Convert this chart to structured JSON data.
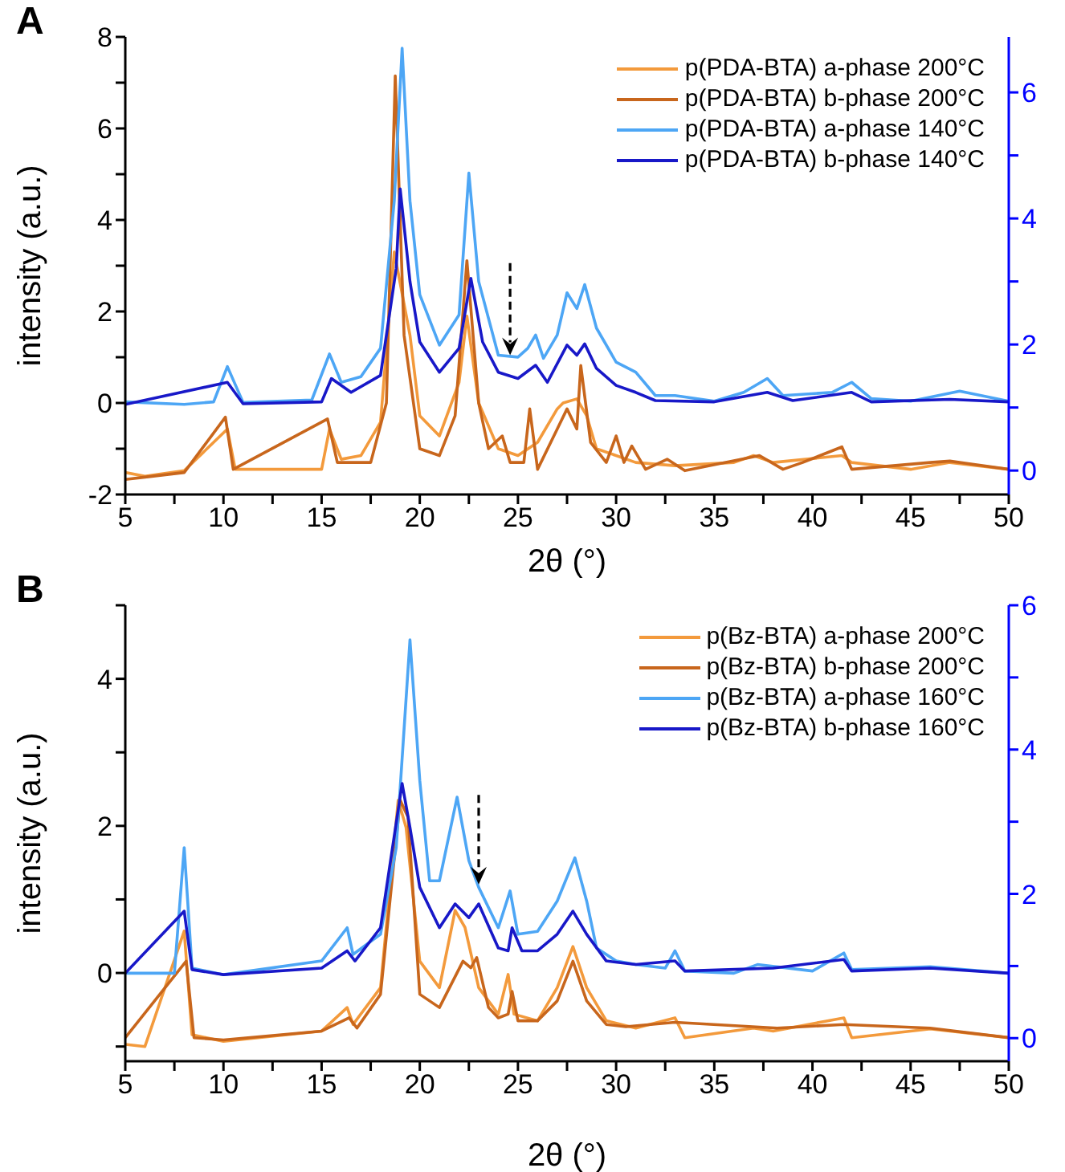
{
  "chart_data": [
    {
      "type": "line",
      "title": "A",
      "xlabel": "2θ (°)",
      "ylabel": "intensity (a.u.)",
      "xlim": [
        5,
        50
      ],
      "ylim": [
        -2,
        8
      ],
      "y2lim": [
        -0.38,
        6.88
      ],
      "xticks": [
        5,
        {
          "value": 7.5,
          "label": null
        },
        10,
        {
          "value": 12.5,
          "label": null
        },
        15,
        {
          "value": 17.5,
          "label": null
        },
        20,
        {
          "value": 22.5,
          "label": null
        },
        25,
        {
          "value": 27.5,
          "label": null
        },
        30,
        {
          "value": 32.5,
          "label": null
        },
        35,
        {
          "value": 37.5,
          "label": null
        },
        40,
        {
          "value": 42.5,
          "label": null
        },
        45,
        {
          "value": 47.5,
          "label": null
        },
        50
      ],
      "yticks": [
        -2,
        {
          "value": -1,
          "label": null
        },
        0,
        {
          "value": 1,
          "label": null
        },
        2,
        {
          "value": 3,
          "label": null
        },
        4,
        {
          "value": 5,
          "label": null
        },
        6,
        {
          "value": 7,
          "label": null
        },
        8
      ],
      "y2ticks": [
        0,
        {
          "value": 1,
          "label": null
        },
        2,
        {
          "value": 3,
          "label": null
        },
        4,
        {
          "value": 5,
          "label": null
        },
        6
      ],
      "legend": "top right",
      "grid": false,
      "marker": "none",
      "line_style": "solid",
      "series": [
        {
          "name": "p(PDA-BTA) a-phase 200°C",
          "color": "#f39a3c",
          "x": [
            5,
            6,
            8,
            10.2,
            10.6,
            15,
            15.4,
            16,
            17,
            18,
            18.7,
            19.5,
            20,
            21,
            22,
            22.4,
            23,
            24,
            25,
            26,
            27,
            27.3,
            28,
            28.5,
            29,
            30,
            31,
            33,
            36,
            37,
            38,
            41.5,
            42,
            45,
            47,
            50
          ],
          "values": [
            -1.52,
            -1.6,
            -1.48,
            -0.57,
            -1.45,
            -1.45,
            -0.57,
            -1.23,
            -1.15,
            -0.42,
            3.3,
            1.48,
            -0.28,
            -0.72,
            0.45,
            1.9,
            0,
            -1,
            -1.15,
            -0.86,
            -0.13,
            0,
            0.09,
            -0.28,
            -1,
            -1.15,
            -1.3,
            -1.37,
            -1.3,
            -1.15,
            -1.3,
            -1.15,
            -1.3,
            -1.45,
            -1.3,
            -1.45
          ]
        },
        {
          "name": "p(PDA-BTA) b-phase 200°C",
          "color": "#c8661c",
          "x": [
            5,
            6,
            8,
            10.1,
            10.5,
            15.3,
            15.8,
            17.5,
            18.3,
            18.75,
            19.2,
            20,
            21,
            21.8,
            22.4,
            23,
            23.5,
            24.2,
            24.6,
            25.3,
            25.6,
            26,
            27,
            27.5,
            28,
            28.2,
            28.7,
            29.5,
            30,
            30.4,
            30.8,
            31.5,
            32.6,
            33.5,
            36.4,
            37.3,
            38.5,
            39.5,
            41.5,
            42,
            46,
            47,
            48,
            50
          ],
          "values": [
            -1.67,
            -1.62,
            -1.52,
            -0.31,
            -1.45,
            -0.35,
            -1.3,
            -1.3,
            0,
            7.15,
            1.48,
            -1,
            -1.15,
            -0.28,
            3.11,
            0,
            -1,
            -0.72,
            -1.3,
            -1.3,
            -0.13,
            -1.45,
            -0.57,
            -0.13,
            -0.57,
            0.82,
            -0.86,
            -1.3,
            -0.72,
            -1.3,
            -0.94,
            -1.45,
            -1.23,
            -1.48,
            -1.23,
            -1.15,
            -1.45,
            -1.3,
            -0.96,
            -1.45,
            -1.3,
            -1.27,
            -1.33,
            -1.45
          ]
        },
        {
          "name": "p(PDA-BTA) a-phase 140°C",
          "color": "#4da6f5",
          "axis": "y2",
          "x": [
            5,
            8,
            9.5,
            10.2,
            11,
            14.5,
            15.4,
            16,
            17,
            18,
            18.7,
            19.1,
            19.5,
            20,
            21,
            22,
            22.5,
            23,
            24,
            25,
            25.5,
            25.9,
            26.3,
            27,
            27.5,
            28,
            28.4,
            29,
            30,
            31,
            32,
            33,
            35,
            36.5,
            37.7,
            38.5,
            41,
            42,
            43,
            45,
            47.5,
            50
          ],
          "values": [
            1.09,
            1.05,
            1.09,
            1.65,
            1.08,
            1.12,
            1.85,
            1.4,
            1.49,
            1.94,
            4.28,
            6.7,
            4.28,
            2.79,
            1.99,
            2.47,
            4.72,
            3,
            1.83,
            1.8,
            1.94,
            2.15,
            1.78,
            2.15,
            2.82,
            2.57,
            2.95,
            2.26,
            1.72,
            1.56,
            1.19,
            1.19,
            1.1,
            1.24,
            1.46,
            1.19,
            1.24,
            1.4,
            1.14,
            1.1,
            1.26,
            1.1
          ]
        },
        {
          "name": "p(PDA-BTA) b-phase 140°C",
          "color": "#1818c8",
          "axis": "y2",
          "x": [
            5,
            10.2,
            11,
            15,
            15.5,
            16.5,
            18,
            18.8,
            19,
            19.5,
            20,
            21,
            22,
            22.6,
            23.2,
            24,
            25,
            25.9,
            26.5,
            27.5,
            28,
            28.4,
            29,
            30,
            31,
            32,
            35,
            37.7,
            39,
            42,
            43,
            47,
            50
          ],
          "values": [
            1.05,
            1.4,
            1.06,
            1.09,
            1.46,
            1.24,
            1.51,
            3.21,
            4.47,
            3,
            2.04,
            1.56,
            1.94,
            3.05,
            2.04,
            1.56,
            1.46,
            1.67,
            1.4,
            1.99,
            1.83,
            2.01,
            1.62,
            1.35,
            1.24,
            1.11,
            1.09,
            1.24,
            1.11,
            1.24,
            1.09,
            1.13,
            1.09
          ]
        }
      ]
    },
    {
      "type": "line",
      "title": "B",
      "xlabel": "2θ (°)",
      "ylabel": "intensity (a.u.)",
      "xlim": [
        5,
        50
      ],
      "ylim": [
        -1.2,
        5
      ],
      "y2lim": [
        -0.32,
        6
      ],
      "xticks": [
        5,
        {
          "value": 7.5,
          "label": null
        },
        10,
        {
          "value": 12.5,
          "label": null
        },
        15,
        {
          "value": 17.5,
          "label": null
        },
        20,
        {
          "value": 22.5,
          "label": null
        },
        25,
        {
          "value": 27.5,
          "label": null
        },
        30,
        {
          "value": 32.5,
          "label": null
        },
        35,
        {
          "value": 37.5,
          "label": null
        },
        40,
        {
          "value": 42.5,
          "label": null
        },
        45,
        {
          "value": 47.5,
          "label": null
        },
        50
      ],
      "yticks": [
        {
          "value": -1,
          "label": null
        },
        0,
        {
          "value": 1,
          "label": null
        },
        2,
        {
          "value": 3,
          "label": null
        },
        4,
        {
          "value": 5,
          "label": null
        }
      ],
      "y2ticks": [
        0,
        {
          "value": 1,
          "label": null
        },
        2,
        {
          "value": 3,
          "label": null
        },
        4,
        {
          "value": 5,
          "label": null
        },
        6
      ],
      "legend": "top right",
      "grid": false,
      "marker": "none",
      "line_style": "solid",
      "series": [
        {
          "name": "p(Bz-BTA) a-phase 200°C",
          "color": "#f39a3c",
          "x": [
            5,
            6,
            8,
            8.4,
            10,
            15,
            16.3,
            16.6,
            18,
            18.9,
            19.3,
            20,
            21,
            21.8,
            22.3,
            23,
            24,
            24.5,
            24.8,
            26,
            27,
            27.8,
            28.5,
            29.5,
            31,
            33,
            33.5,
            37,
            38,
            41.6,
            42,
            46,
            50
          ],
          "values": [
            -0.97,
            -1,
            0.57,
            -0.84,
            -0.93,
            -0.79,
            -0.47,
            -0.7,
            -0.2,
            2.35,
            1.98,
            0.16,
            -0.2,
            0.85,
            0.62,
            -0.2,
            -0.56,
            -0.02,
            -0.56,
            -0.65,
            -0.2,
            0.36,
            -0.2,
            -0.65,
            -0.75,
            -0.61,
            -0.88,
            -0.75,
            -0.79,
            -0.61,
            -0.88,
            -0.76,
            -0.88
          ]
        },
        {
          "name": "p(Bz-BTA) b-phase 200°C",
          "color": "#c8661c",
          "x": [
            5,
            8.1,
            8.5,
            10,
            15,
            16.4,
            16.8,
            18,
            19,
            19.4,
            20,
            21,
            22.2,
            22.6,
            22.9,
            23.5,
            24,
            24.5,
            24.7,
            25,
            26,
            27,
            27.8,
            28.5,
            29.5,
            30.5,
            33,
            38.2,
            41.6,
            46,
            50
          ],
          "values": [
            -0.88,
            0.16,
            -0.88,
            -0.91,
            -0.79,
            -0.61,
            -0.75,
            -0.29,
            2.35,
            2.12,
            -0.29,
            -0.47,
            0.16,
            0.07,
            0.21,
            -0.47,
            -0.61,
            -0.56,
            -0.25,
            -0.65,
            -0.65,
            -0.38,
            0.16,
            -0.38,
            -0.7,
            -0.73,
            -0.67,
            -0.75,
            -0.7,
            -0.75,
            -0.88
          ]
        },
        {
          "name": "p(Bz-BTA) a-phase 160°C",
          "color": "#4da6f5",
          "axis": "y2",
          "x": [
            5,
            7.5,
            8,
            8.4,
            10,
            15,
            16.3,
            16.6,
            18,
            18.8,
            19.5,
            20,
            20.5,
            21,
            21.9,
            22.5,
            23,
            24,
            24.6,
            25,
            26,
            27,
            27.9,
            28.5,
            29,
            30,
            31,
            32.5,
            33,
            33.5,
            36,
            37.2,
            40,
            41.6,
            42,
            46,
            50
          ],
          "values": [
            0.9,
            0.9,
            2.64,
            0.97,
            0.88,
            1.07,
            1.53,
            1.16,
            1.44,
            2.64,
            5.52,
            3.57,
            2.18,
            2.18,
            3.34,
            2.46,
            2.09,
            1.53,
            2.04,
            1.44,
            1.48,
            1.9,
            2.5,
            1.9,
            1.25,
            1.07,
            1.02,
            0.97,
            1.21,
            0.93,
            0.9,
            1.02,
            0.93,
            1.18,
            0.95,
            0.99,
            0.9
          ]
        },
        {
          "name": "p(Bz-BTA) b-phase 160°C",
          "color": "#1818c8",
          "axis": "y2",
          "x": [
            5,
            8,
            8.4,
            10,
            15,
            16.3,
            16.7,
            18,
            19.1,
            19.5,
            20,
            21,
            21.8,
            22.5,
            23,
            24,
            24.5,
            24.7,
            25.2,
            26,
            27,
            27.8,
            28.5,
            29.5,
            31,
            33,
            33.5,
            38,
            41.6,
            42,
            46,
            50
          ],
          "values": [
            0.9,
            1.76,
            0.95,
            0.88,
            0.97,
            1.21,
            1.07,
            1.53,
            3.53,
            2.92,
            2.09,
            1.53,
            1.86,
            1.67,
            1.86,
            1.25,
            1.21,
            1.53,
            1.21,
            1.21,
            1.44,
            1.76,
            1.44,
            1.07,
            1.02,
            1.07,
            0.93,
            0.97,
            1.09,
            0.93,
            0.97,
            0.9
          ]
        }
      ]
    }
  ]
}
